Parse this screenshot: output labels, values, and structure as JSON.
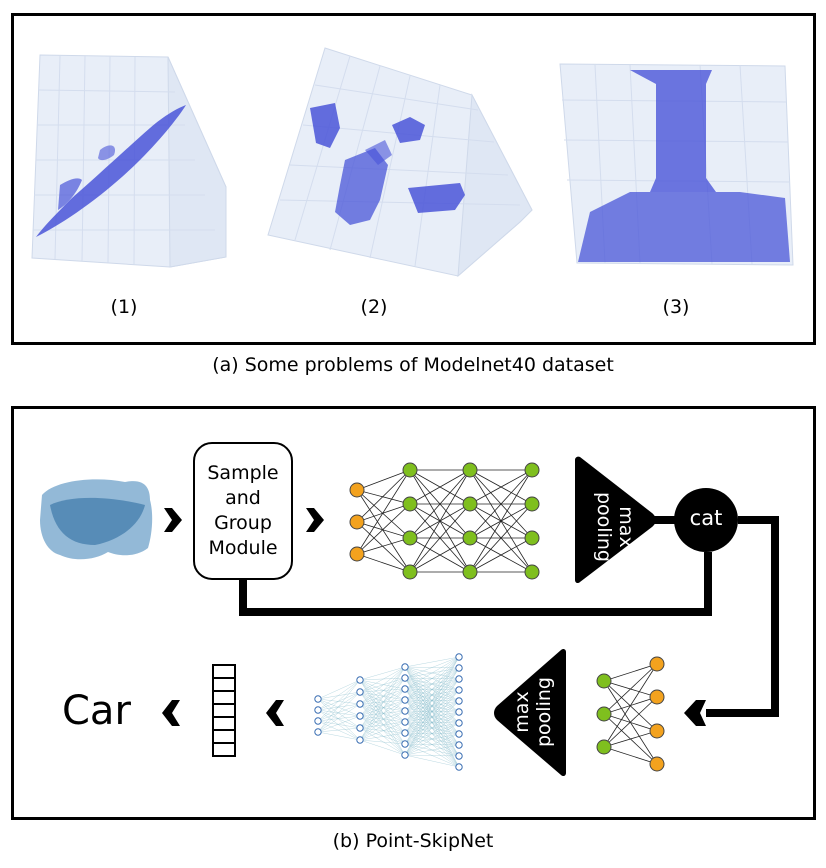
{
  "panel_a": {
    "caption": "(a) Some problems of Modelnet40 dataset",
    "labels": [
      "(1)",
      "(2)",
      "(3)"
    ]
  },
  "panel_b": {
    "caption": "(b) Point-SkipNet",
    "module_lines": [
      "Sample",
      "and",
      "Group",
      "Module"
    ],
    "max_pooling_top": [
      "max",
      "pooling"
    ],
    "max_pooling_bottom": [
      "max",
      "pooling"
    ],
    "cat_label": "cat",
    "output_label": "Car"
  },
  "colors": {
    "point_cloud_blue": "#4a55d8",
    "car_cloud_blue": "#3b7fb6",
    "node_orange": "#f3a21e",
    "node_green": "#7fbf1e",
    "box_bg": "#e9eef7"
  }
}
